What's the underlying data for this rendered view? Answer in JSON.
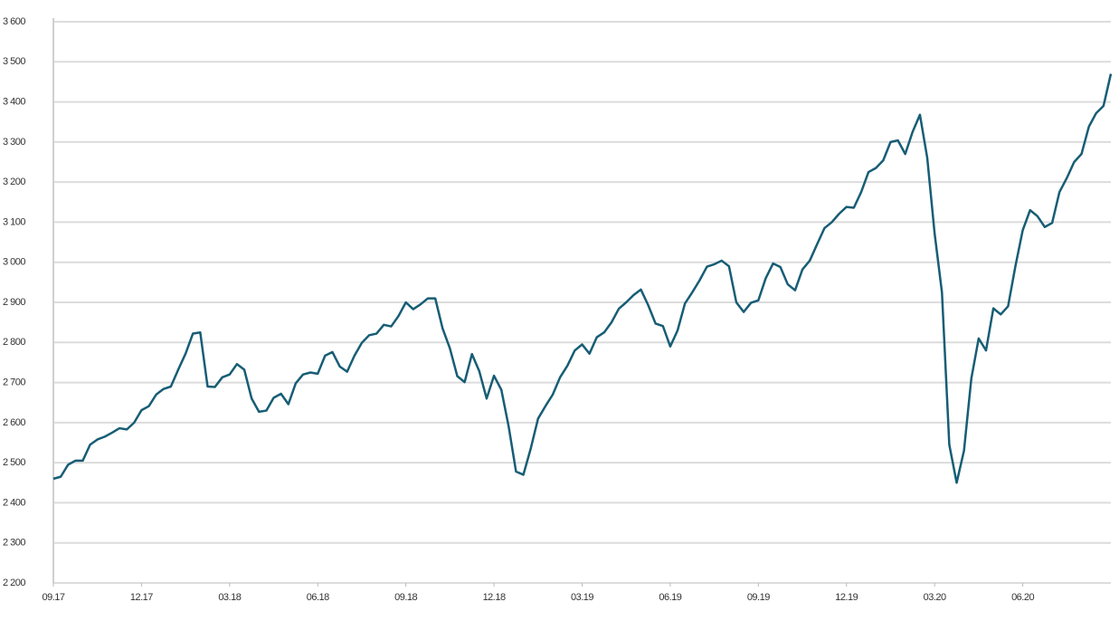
{
  "chart_data": {
    "type": "line",
    "categories": [
      "09.17",
      null,
      null,
      null,
      null,
      null,
      null,
      null,
      null,
      null,
      null,
      null,
      "12.17",
      null,
      null,
      null,
      null,
      null,
      null,
      null,
      null,
      null,
      null,
      null,
      "03.18",
      null,
      null,
      null,
      null,
      null,
      null,
      null,
      null,
      null,
      null,
      null,
      "06.18",
      null,
      null,
      null,
      null,
      null,
      null,
      null,
      null,
      null,
      null,
      null,
      "09.18",
      null,
      null,
      null,
      null,
      null,
      null,
      null,
      null,
      null,
      null,
      null,
      "12.18",
      null,
      null,
      null,
      null,
      null,
      null,
      null,
      null,
      null,
      null,
      null,
      "03.19",
      null,
      null,
      null,
      null,
      null,
      null,
      null,
      null,
      null,
      null,
      null,
      "06.19",
      null,
      null,
      null,
      null,
      null,
      null,
      null,
      null,
      null,
      null,
      null,
      "09.19",
      null,
      null,
      null,
      null,
      null,
      null,
      null,
      null,
      null,
      null,
      null,
      "12.19",
      null,
      null,
      null,
      null,
      null,
      null,
      null,
      null,
      null,
      null,
      null,
      "03.20",
      null,
      null,
      null,
      null,
      null,
      null,
      null,
      null,
      null,
      null,
      null,
      "06.20",
      null,
      null,
      null,
      null,
      null,
      null,
      null,
      null,
      null,
      null,
      null,
      null
    ],
    "values": [
      2460,
      2465,
      2495,
      2505,
      2505,
      2545,
      2558,
      2565,
      2575,
      2586,
      2583,
      2600,
      2631,
      2641,
      2670,
      2684,
      2690,
      2732,
      2772,
      2822,
      2825,
      2690,
      2689,
      2713,
      2720,
      2746,
      2732,
      2660,
      2627,
      2630,
      2662,
      2672,
      2646,
      2698,
      2720,
      2725,
      2722,
      2767,
      2776,
      2740,
      2727,
      2767,
      2799,
      2818,
      2822,
      2844,
      2840,
      2866,
      2900,
      2883,
      2895,
      2910,
      2910,
      2835,
      2785,
      2716,
      2701,
      2771,
      2728,
      2660,
      2717,
      2682,
      2590,
      2478,
      2470,
      2535,
      2610,
      2641,
      2670,
      2713,
      2742,
      2780,
      2795,
      2772,
      2813,
      2825,
      2850,
      2884,
      2900,
      2918,
      2932,
      2893,
      2847,
      2841,
      2790,
      2830,
      2897,
      2925,
      2955,
      2989,
      2995,
      3004,
      2990,
      2900,
      2876,
      2899,
      2905,
      2960,
      2997,
      2988,
      2945,
      2930,
      2982,
      3004,
      3045,
      3085,
      3100,
      3121,
      3138,
      3136,
      3175,
      3225,
      3235,
      3254,
      3300,
      3304,
      3270,
      3325,
      3368,
      3260,
      3072,
      2925,
      2545,
      2450,
      2530,
      2710,
      2810,
      2780,
      2885,
      2870,
      2890,
      2990,
      3080,
      3130,
      3115,
      3088,
      3098,
      3175,
      3210,
      3250,
      3270,
      3338,
      3372,
      3390,
      3470
    ],
    "color": "#175d75",
    "ylim": [
      2200,
      3600
    ],
    "yticks": [
      {
        "value": 2200,
        "label": "2 200"
      },
      {
        "value": 2300,
        "label": "2 300"
      },
      {
        "value": 2400,
        "label": "2 400"
      },
      {
        "value": 2500,
        "label": "2 500"
      },
      {
        "value": 2600,
        "label": "2 600"
      },
      {
        "value": 2700,
        "label": "2 700"
      },
      {
        "value": 2800,
        "label": "2 800"
      },
      {
        "value": 2900,
        "label": "2 900"
      },
      {
        "value": 3000,
        "label": "3 000"
      },
      {
        "value": 3100,
        "label": "3 100"
      },
      {
        "value": 3200,
        "label": "3 200"
      },
      {
        "value": 3300,
        "label": "3 300"
      },
      {
        "value": 3400,
        "label": "3 400"
      },
      {
        "value": 3500,
        "label": "3 500"
      },
      {
        "value": 3600,
        "label": "3 600"
      }
    ],
    "grid": true
  }
}
